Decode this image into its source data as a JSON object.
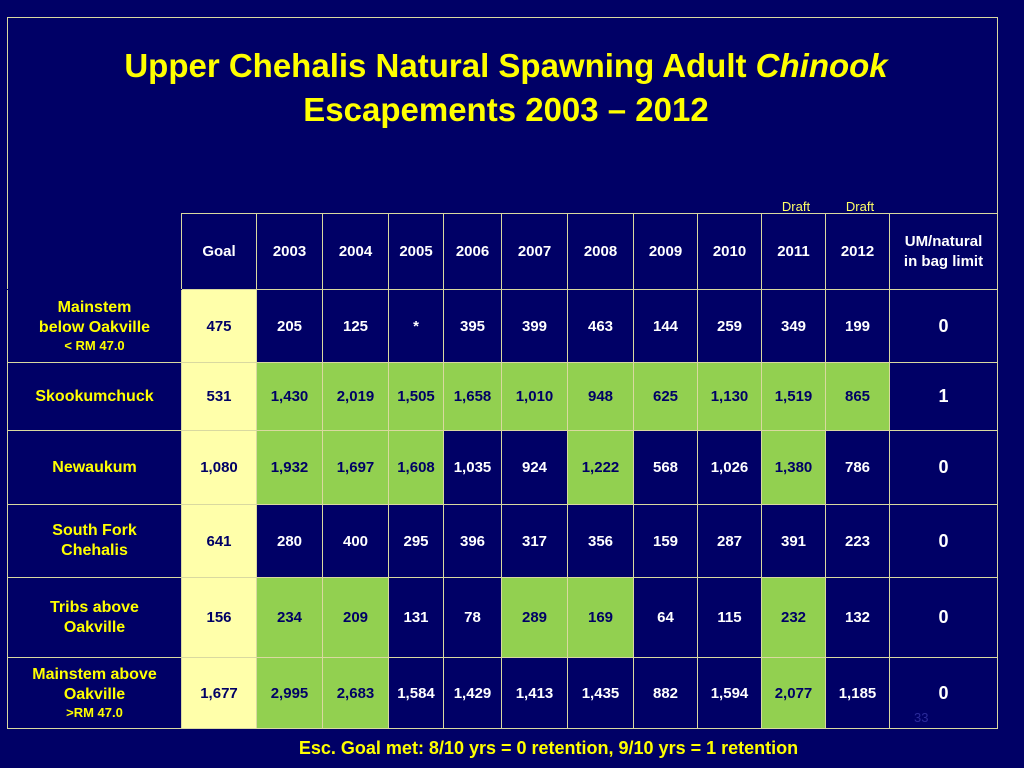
{
  "title": {
    "main": "Upper Chehalis Natural Spawning Adult",
    "italic": "Chinook",
    "line2": "Escapements 2003 – 2012"
  },
  "draft_labels": [
    "Draft",
    "Draft"
  ],
  "table": {
    "headers": [
      "Goal",
      "2003",
      "2004",
      "2005",
      "2006",
      "2007",
      "2008",
      "2009",
      "2010",
      "2011",
      "2012"
    ],
    "um_header": [
      "UM/natural",
      "in bag limit"
    ],
    "rows": [
      {
        "label": [
          "Mainstem",
          "below Oakville"
        ],
        "sublabel": "< RM 47.0",
        "cells": [
          "475",
          "205",
          "125",
          "*",
          "395",
          "399",
          "463",
          "144",
          "259",
          "349",
          "199"
        ],
        "met": [
          false,
          false,
          false,
          false,
          false,
          false,
          false,
          false,
          false,
          false
        ],
        "um": "0"
      },
      {
        "label": [
          "Skookumchuck"
        ],
        "sublabel": "",
        "cells": [
          "531",
          "1,430",
          "2,019",
          "1,505",
          "1,658",
          "1,010",
          "948",
          "625",
          "1,130",
          "1,519",
          "865"
        ],
        "met": [
          true,
          true,
          true,
          true,
          true,
          true,
          true,
          true,
          true,
          true
        ],
        "um": "1"
      },
      {
        "label": [
          "Newaukum"
        ],
        "sublabel": "",
        "cells": [
          "1,080",
          "1,932",
          "1,697",
          "1,608",
          "1,035",
          "924",
          "1,222",
          "568",
          "1,026",
          "1,380",
          "786"
        ],
        "met": [
          true,
          true,
          true,
          false,
          false,
          true,
          false,
          false,
          true,
          false
        ],
        "um": "0"
      },
      {
        "label": [
          "South Fork",
          "Chehalis"
        ],
        "sublabel": "",
        "cells": [
          "641",
          "280",
          "400",
          "295",
          "396",
          "317",
          "356",
          "159",
          "287",
          "391",
          "223"
        ],
        "met": [
          false,
          false,
          false,
          false,
          false,
          false,
          false,
          false,
          false,
          false
        ],
        "um": "0"
      },
      {
        "label": [
          "Tribs above",
          "Oakville"
        ],
        "sublabel": "",
        "cells": [
          "156",
          "234",
          "209",
          "131",
          "78",
          "289",
          "169",
          "64",
          "115",
          "232",
          "132"
        ],
        "met": [
          true,
          true,
          false,
          false,
          true,
          true,
          false,
          false,
          true,
          false
        ],
        "um": "0"
      },
      {
        "label": [
          "Mainstem above",
          "Oakville"
        ],
        "sublabel": ">RM 47.0",
        "cells": [
          "1,677",
          "2,995",
          "2,683",
          "1,584",
          "1,429",
          "1,413",
          "1,435",
          "882",
          "1,594",
          "2,077",
          "1,185"
        ],
        "met": [
          true,
          true,
          false,
          false,
          false,
          false,
          false,
          false,
          true,
          false
        ],
        "um": "0"
      }
    ]
  },
  "page_number": "33",
  "footnote": "Esc. Goal met: 8/10 yrs = 0 retention, 9/10 yrs = 1 retention",
  "colors": {
    "background": "#000066",
    "title": "#ffff00",
    "goal_cell": "#ffffaa",
    "goal_met": "#92d050"
  }
}
